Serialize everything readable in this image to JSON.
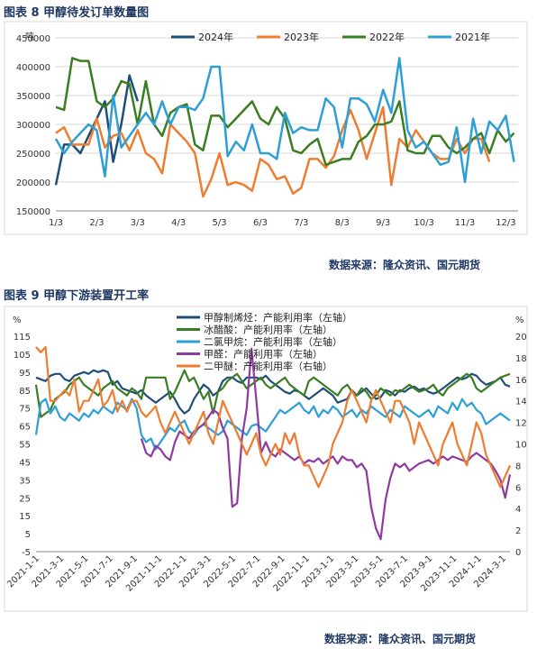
{
  "figure1": {
    "caption": "图表 8 甲醇待发订单数量图",
    "source": "数据来源：隆众资讯、国元期货"
  },
  "figure2": {
    "caption": "图表 9 甲醇下游装置开工率",
    "source": "数据来源：隆众资讯、国元期货"
  },
  "chart_data": [
    {
      "type": "line",
      "title": "",
      "ylabel": "吨",
      "ylim": [
        150000,
        450000
      ],
      "yticks": [
        150000,
        200000,
        250000,
        300000,
        350000,
        400000,
        450000
      ],
      "xtick_labels": [
        "1/3",
        "2/3",
        "3/3",
        "4/3",
        "5/3",
        "6/3",
        "7/3",
        "8/3",
        "9/3",
        "10/3",
        "11/3",
        "12/3"
      ],
      "legend": "top",
      "series": [
        {
          "name": "2024年",
          "color": "#1f4e79",
          "values": [
            195000,
            265000,
            265000,
            250000,
            280000,
            310000,
            340000,
            235000,
            300000,
            385000,
            340000
          ]
        },
        {
          "name": "2023年",
          "color": "#ed7d31",
          "values": [
            285000,
            295000,
            265000,
            265000,
            265000,
            310000,
            260000,
            280000,
            285000,
            255000,
            290000,
            250000,
            240000,
            215000,
            300000,
            285000,
            270000,
            250000,
            175000,
            205000,
            250000,
            195000,
            200000,
            195000,
            185000,
            240000,
            230000,
            205000,
            210000,
            180000,
            190000,
            240000,
            240000,
            225000,
            245000,
            290000,
            325000,
            290000,
            240000,
            285000,
            330000,
            195000,
            275000,
            260000,
            290000,
            270000,
            250000,
            240000,
            240000,
            275000,
            250000,
            275000,
            275000,
            235000
          ]
        },
        {
          "name": "2022年",
          "color": "#3a7d22",
          "values": [
            330000,
            325000,
            415000,
            410000,
            410000,
            340000,
            330000,
            345000,
            375000,
            370000,
            300000,
            375000,
            300000,
            280000,
            320000,
            330000,
            335000,
            265000,
            255000,
            315000,
            315000,
            295000,
            310000,
            325000,
            340000,
            310000,
            300000,
            330000,
            310000,
            255000,
            250000,
            265000,
            275000,
            230000,
            235000,
            240000,
            240000,
            270000,
            280000,
            300000,
            300000,
            305000,
            340000,
            255000,
            250000,
            250000,
            280000,
            280000,
            260000,
            250000,
            260000,
            275000,
            285000,
            250000,
            290000,
            270000,
            285000
          ]
        },
        {
          "name": "2021年",
          "color": "#2e9fd4",
          "values": [
            275000,
            250000,
            270000,
            285000,
            300000,
            290000,
            210000,
            350000,
            260000,
            280000,
            300000,
            320000,
            300000,
            340000,
            300000,
            330000,
            330000,
            325000,
            345000,
            400000,
            400000,
            245000,
            270000,
            255000,
            300000,
            250000,
            250000,
            240000,
            320000,
            285000,
            295000,
            290000,
            290000,
            345000,
            330000,
            260000,
            345000,
            345000,
            335000,
            305000,
            360000,
            320000,
            415000,
            290000,
            260000,
            270000,
            250000,
            230000,
            235000,
            295000,
            200000,
            310000,
            250000,
            305000,
            290000,
            315000,
            235000
          ]
        }
      ]
    },
    {
      "type": "line",
      "title": "",
      "ylabel_left": "%",
      "ylabel_right": "%",
      "ylim_left": [
        -5,
        115
      ],
      "ylim_right": [
        0,
        20
      ],
      "yticks_left": [
        -5,
        5,
        15,
        25,
        35,
        45,
        55,
        65,
        75,
        85,
        95,
        105,
        115
      ],
      "yticks_right": [
        0,
        2,
        4,
        6,
        8,
        10,
        12,
        14,
        16,
        18,
        20
      ],
      "xtick_labels": [
        "2021-1-1",
        "2021-3-1",
        "2021-5-1",
        "2021-7-1",
        "2021-9-1",
        "2021-11-1",
        "2022-1-1",
        "2022-3-1",
        "2022-5-1",
        "2022-7-1",
        "2022-9-1",
        "2022-11-1",
        "2023-1-1",
        "2023-3-1",
        "2023-5-1",
        "2023-7-1",
        "2023-9-1",
        "2023-11-1",
        "2024-1-1",
        "2024-3-1"
      ],
      "legend": "top",
      "series": [
        {
          "name": "甲醇制烯烃：产能利用率（左轴）",
          "color": "#1f4e79",
          "axis": "left",
          "values": [
            92,
            91,
            90,
            93,
            94,
            94,
            91,
            90,
            93,
            94,
            95,
            94,
            96,
            95,
            96,
            95,
            88,
            90,
            86,
            85,
            84,
            83,
            85,
            82,
            80,
            78,
            80,
            82,
            84,
            80,
            75,
            72,
            74,
            80,
            84,
            88,
            86,
            82,
            84,
            90,
            92,
            92,
            90,
            89,
            92,
            92,
            92,
            91,
            93,
            90,
            88,
            86,
            84,
            83,
            85,
            84,
            82,
            80,
            82,
            84,
            86,
            84,
            82,
            78,
            79,
            80,
            85,
            82,
            84,
            86,
            83,
            80,
            81,
            85,
            84,
            82,
            85,
            84,
            86,
            87,
            85,
            86,
            84,
            83,
            84,
            86,
            88,
            90,
            92,
            91,
            92,
            94,
            93,
            90,
            88,
            89,
            90,
            92,
            88,
            87
          ]
        },
        {
          "name": "冰醋酸：产能利用率（左轴）",
          "color": "#3a7d22",
          "axis": "left",
          "values": [
            88,
            70,
            72,
            74,
            80,
            82,
            84,
            88,
            90,
            92,
            88,
            86,
            84,
            82,
            86,
            88,
            90,
            86,
            84,
            82,
            86,
            84,
            80,
            92,
            92,
            92,
            92,
            92,
            80,
            84,
            90,
            96,
            90,
            92,
            86,
            80,
            84,
            72,
            84,
            86,
            90,
            92,
            94,
            90,
            86,
            88,
            90,
            92,
            88,
            86,
            88,
            90,
            92,
            88,
            86,
            84,
            82,
            90,
            92,
            90,
            88,
            86,
            84,
            82,
            86,
            88,
            84,
            82,
            86,
            84,
            80,
            82,
            86,
            84,
            82,
            85,
            84,
            86,
            88,
            86,
            84,
            85,
            86,
            88,
            84,
            82,
            86,
            88,
            90,
            92,
            94,
            92,
            86,
            84,
            86,
            88,
            90,
            92,
            93,
            94
          ]
        },
        {
          "name": "二氯甲烷：产能利用率（左轴）",
          "color": "#2e9fd4",
          "axis": "left",
          "values": [
            60,
            78,
            80,
            72,
            76,
            70,
            68,
            72,
            70,
            68,
            72,
            70,
            74,
            72,
            76,
            74,
            72,
            78,
            76,
            74,
            80,
            75,
            60,
            56,
            58,
            52,
            56,
            60,
            64,
            62,
            66,
            68,
            62,
            60,
            64,
            66,
            64,
            62,
            60,
            62,
            68,
            66,
            64,
            62,
            60,
            65,
            66,
            64,
            62,
            66,
            70,
            74,
            72,
            74,
            76,
            78,
            74,
            72,
            76,
            70,
            74,
            72,
            76,
            74,
            70,
            72,
            74,
            70,
            74,
            72,
            76,
            74,
            72,
            70,
            74,
            72,
            70,
            76,
            74,
            72,
            70,
            72,
            74,
            70,
            76,
            74,
            72,
            78,
            74,
            80,
            76,
            78,
            74,
            72,
            66,
            68,
            70,
            72,
            70,
            68
          ]
        },
        {
          "name": "甲醛：产能利用率（左轴）",
          "color": "#8e3a9e",
          "axis": "left",
          "values": [
            null,
            null,
            null,
            null,
            null,
            null,
            null,
            null,
            null,
            null,
            null,
            null,
            null,
            null,
            null,
            null,
            null,
            null,
            null,
            null,
            null,
            null,
            58,
            50,
            48,
            54,
            52,
            48,
            46,
            56,
            62,
            60,
            58,
            62,
            64,
            66,
            70,
            74,
            72,
            64,
            58,
            20,
            22,
            58,
            75,
            108,
            80,
            50,
            56,
            50,
            48,
            52,
            50,
            48,
            46,
            48,
            44,
            46,
            45,
            47,
            44,
            46,
            48,
            44,
            48,
            46,
            46,
            42,
            44,
            40,
            20,
            8,
            2,
            24,
            36,
            44,
            42,
            44,
            40,
            42,
            44,
            45,
            46,
            44,
            46,
            48,
            46,
            48,
            47,
            46,
            45,
            48,
            50,
            48,
            46,
            44,
            40,
            35,
            25,
            38
          ]
        },
        {
          "name": "二甲醚：产能利用率（右轴）",
          "color": "#ed7d31",
          "axis": "right",
          "values": [
            19,
            18.5,
            19,
            14,
            14,
            14.5,
            15,
            14.5,
            16,
            13,
            14,
            14,
            15,
            16,
            13.5,
            14,
            15,
            13,
            14,
            13,
            14,
            14,
            13,
            12.5,
            13,
            13.5,
            12,
            11,
            12,
            13,
            12,
            11,
            10,
            11,
            12,
            13,
            11,
            10,
            12,
            14,
            13,
            12,
            11,
            10,
            9,
            10,
            11,
            9,
            8,
            9,
            10,
            9,
            11,
            10,
            11,
            9,
            8,
            8,
            7,
            6,
            7,
            8,
            10,
            11,
            12,
            14,
            15,
            14,
            13,
            12,
            14,
            15,
            14,
            13,
            12,
            14,
            14,
            13,
            12,
            10,
            12,
            11,
            10,
            9,
            8,
            10,
            11,
            12,
            10,
            9,
            8,
            10,
            12,
            11,
            9,
            8,
            7,
            6,
            7,
            8
          ]
        }
      ]
    }
  ]
}
